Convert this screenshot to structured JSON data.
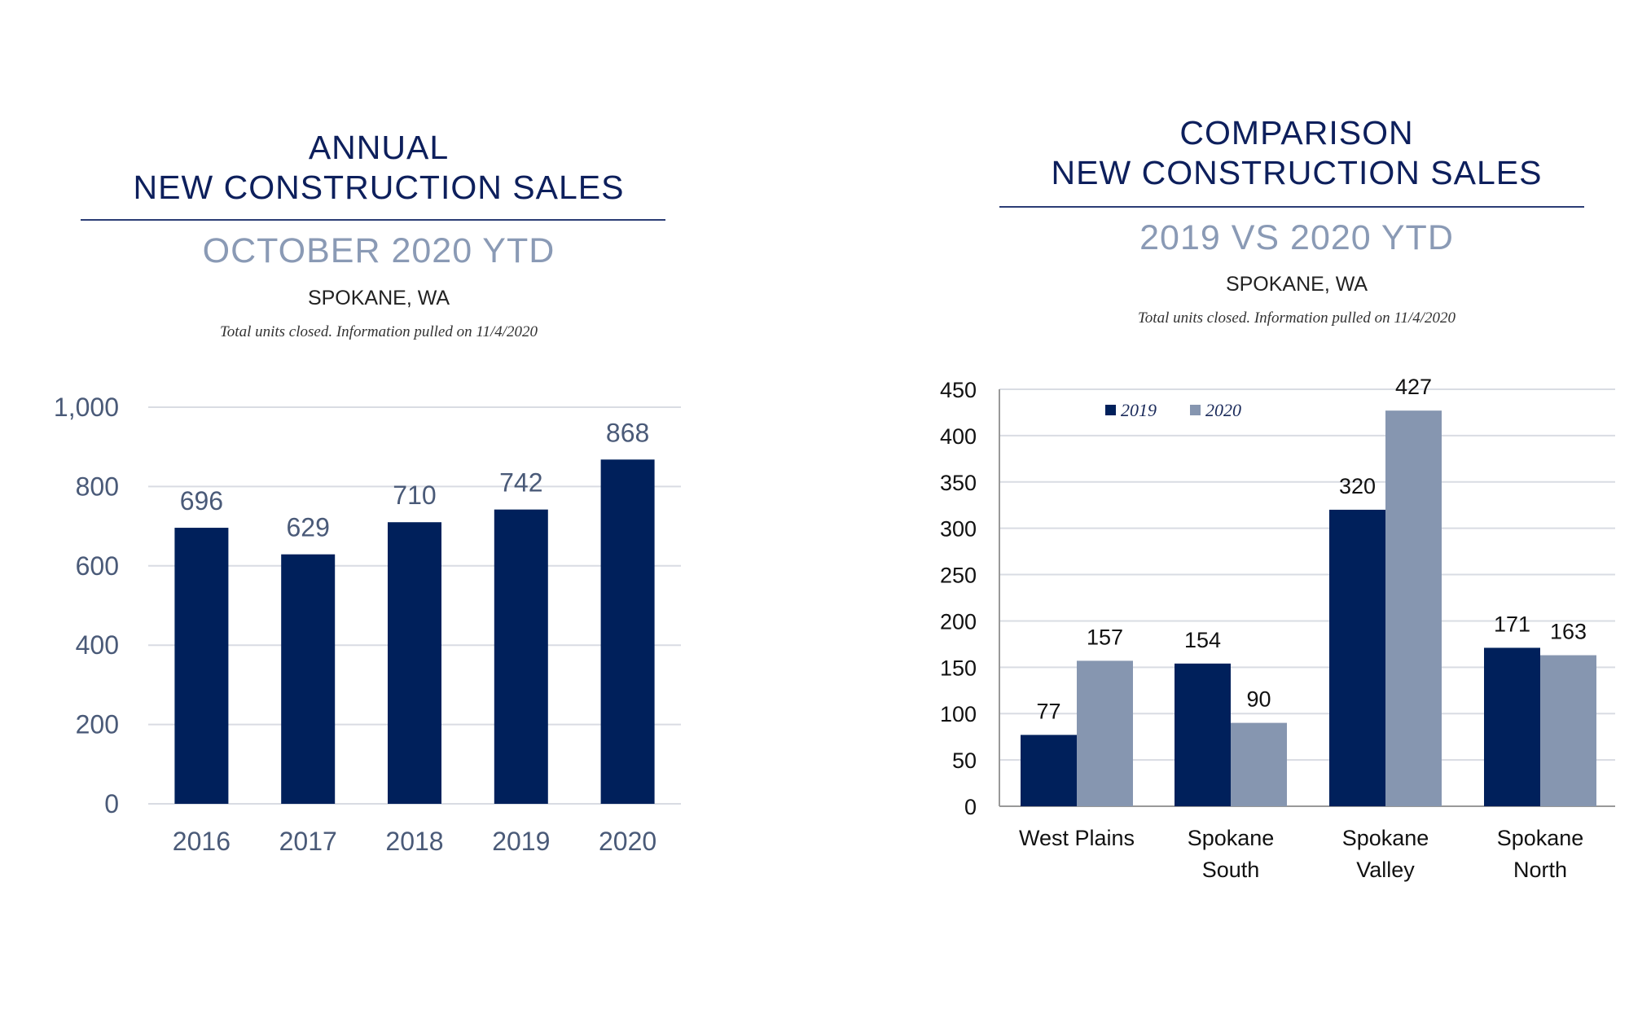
{
  "colors": {
    "navy": "#00205b",
    "gray_blue": "#8696b0",
    "title": "#0d1f5c"
  },
  "chart_data": [
    {
      "type": "bar",
      "title": [
        "ANNUAL",
        "NEW CONSTRUCTION SALES"
      ],
      "subtitle": "OCTOBER 2020 YTD",
      "location": "SPOKANE, WA",
      "note": "Total units closed.  Information pulled on 11/4/2020",
      "categories": [
        "2016",
        "2017",
        "2018",
        "2019",
        "2020"
      ],
      "values": [
        696,
        629,
        710,
        742,
        868
      ],
      "data_labels": [
        "696",
        "629",
        "710",
        "742",
        "868"
      ],
      "ylim": [
        0,
        1000
      ],
      "yticks": [
        0,
        200,
        400,
        600,
        800,
        1000
      ],
      "ytick_labels": [
        "0",
        "200",
        "400",
        "600",
        "800",
        "1,000"
      ],
      "grid": true,
      "xlabel": "",
      "ylabel": ""
    },
    {
      "type": "bar",
      "title": [
        "COMPARISON",
        "NEW CONSTRUCTION SALES"
      ],
      "subtitle": "2019 VS 2020 YTD",
      "location": "SPOKANE, WA",
      "note": "Total units closed.  Information pulled on 11/4/2020",
      "categories": [
        [
          "West Plains"
        ],
        [
          "Spokane",
          "South"
        ],
        [
          "Spokane",
          "Valley"
        ],
        [
          "Spokane",
          "North"
        ]
      ],
      "series": [
        {
          "name": "2019",
          "values": [
            77,
            154,
            320,
            171
          ],
          "color": "#00205b"
        },
        {
          "name": "2020",
          "values": [
            157,
            90,
            427,
            163
          ],
          "color": "#8696b0"
        }
      ],
      "ylim": [
        0,
        450
      ],
      "yticks": [
        0,
        50,
        100,
        150,
        200,
        250,
        300,
        350,
        400,
        450
      ],
      "legend": "top-left",
      "grid": true,
      "xlabel": "",
      "ylabel": ""
    }
  ]
}
